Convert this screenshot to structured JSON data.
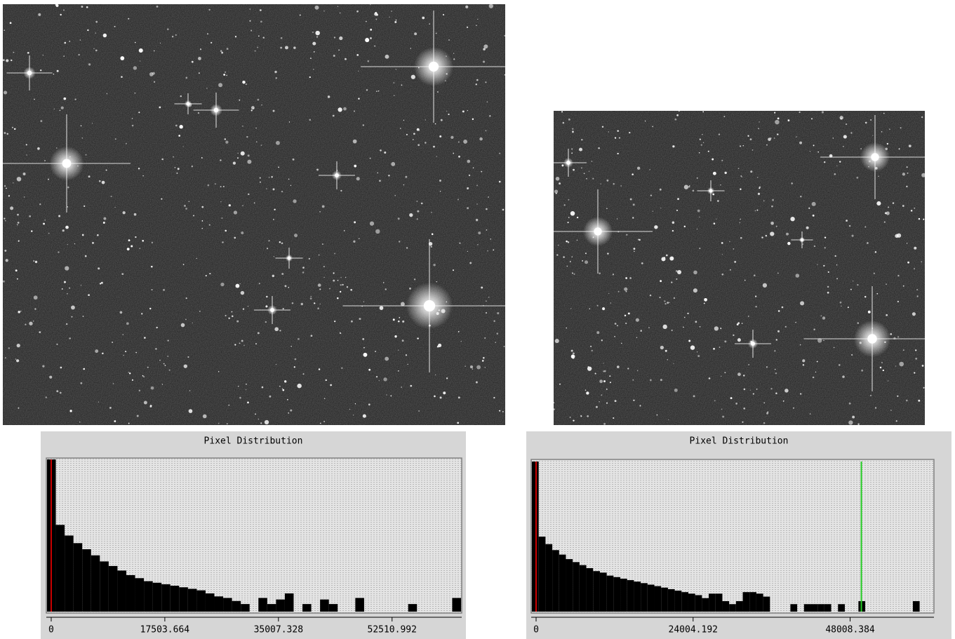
{
  "chart_data": [
    {
      "type": "histogram",
      "title": "Pixel Distribution",
      "color": "#000000",
      "bins": [
        -646,
        711,
        2068,
        3425,
        4782,
        6139,
        7496,
        8853,
        10210,
        11567,
        12924,
        14281,
        15638,
        16995,
        18352,
        19709,
        21066,
        22423,
        23780,
        25137,
        26494,
        27851,
        29208,
        30565,
        31922,
        33279,
        34636,
        35993,
        37350,
        38707,
        40064,
        41421,
        42778,
        44135,
        45492,
        46849,
        48206,
        49563,
        50920,
        52277,
        53634,
        54991,
        56348,
        57705,
        59062,
        60419,
        61776,
        63133
      ],
      "values": [
        100,
        57,
        50,
        45,
        41,
        37,
        33,
        30,
        27,
        24,
        22,
        20,
        19,
        18,
        17,
        16,
        15,
        14,
        12,
        10,
        9,
        7,
        5,
        0,
        9,
        5,
        8,
        12,
        0,
        5,
        0,
        8,
        5,
        0,
        0,
        9,
        0,
        0,
        0,
        0,
        0,
        5,
        0,
        0,
        0,
        0,
        9
      ],
      "xlim": [
        -646,
        63133
      ],
      "ylim": [
        0,
        100
      ],
      "xticks": [
        0,
        17503.664,
        35007.328,
        52510.992
      ],
      "lines": [
        {
          "value": 0,
          "color": "#cc0000"
        }
      ]
    },
    {
      "type": "histogram",
      "title": "Pixel Distribution",
      "color": "#000000",
      "bins": [
        -644,
        396,
        1436,
        2476,
        3516,
        4556,
        5596,
        6636,
        7676,
        8716,
        9756,
        10796,
        11836,
        12876,
        13916,
        14956,
        15996,
        17036,
        18076,
        19116,
        20156,
        21196,
        22236,
        23276,
        24316,
        25356,
        26396,
        27436,
        28476,
        29516,
        30556,
        31596,
        32636,
        33676,
        34716,
        35756,
        36796,
        37836,
        38876,
        39916,
        40956,
        41996,
        43036,
        44076,
        45116,
        46156,
        47196,
        48236,
        49276,
        50316,
        51356,
        52396,
        53436,
        54476,
        55516,
        56556,
        57596,
        58636,
        59676,
        60716
      ],
      "values": [
        100,
        50,
        45,
        41,
        38,
        35,
        33,
        31,
        29,
        27,
        26,
        24,
        23,
        22,
        21,
        20,
        19,
        18,
        17,
        16,
        15,
        14,
        13,
        12,
        11,
        9,
        12,
        12,
        7,
        5,
        7,
        13,
        13,
        12,
        10,
        0,
        0,
        0,
        5,
        0,
        5,
        5,
        5,
        5,
        0,
        5,
        0,
        0,
        7,
        0,
        0,
        0,
        0,
        0,
        0,
        0,
        7,
        0,
        0
      ],
      "xlim": [
        -644,
        60716
      ],
      "ylim": [
        0,
        100
      ],
      "xticks": [
        0,
        24004.192,
        48008.384
      ],
      "lines": [
        {
          "value": 0,
          "color": "#cc0000"
        },
        {
          "value": 49726,
          "color": "#22cc22"
        }
      ]
    }
  ]
}
